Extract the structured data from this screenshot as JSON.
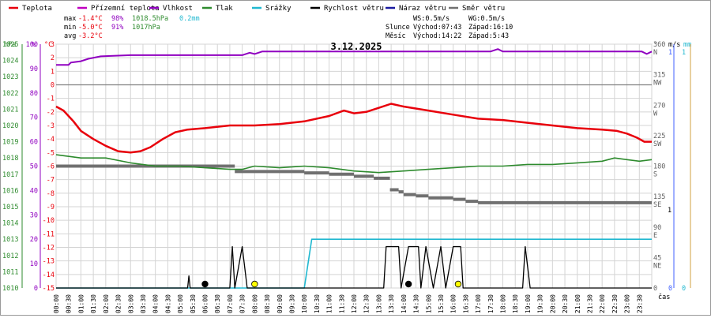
{
  "chart_data": {
    "type": "line",
    "title": "3.12.2025",
    "x": {
      "from": "00:00",
      "to": "24:00",
      "tick_step": "0:30",
      "label": "čas",
      "tick_labels": [
        "00:00",
        "00:30",
        "01:00",
        "01:30",
        "02:00",
        "02:30",
        "03:00",
        "03:30",
        "04:00",
        "04:30",
        "05:00",
        "05:30",
        "06:00",
        "06:30",
        "07:00",
        "07:30",
        "08:00",
        "08:30",
        "09:00",
        "09:30",
        "10:00",
        "10:30",
        "11:00",
        "11:30",
        "12:00",
        "12:30",
        "13:00",
        "13:30",
        "14:00",
        "14:30",
        "15:00",
        "15:30",
        "16:00",
        "16:30",
        "17:00",
        "17:30",
        "18:00",
        "18:30",
        "19:00",
        "19:30",
        "20:00",
        "20:30",
        "21:00",
        "21:30",
        "22:00",
        "22:30",
        "23:00",
        "23:30"
      ]
    },
    "legend": [
      {
        "name": "Teplota",
        "color": "#e8000b"
      },
      {
        "name": "Přízemní teplota",
        "color": "#c000c0"
      },
      {
        "name": "Vlhkost",
        "color": "#9000c0"
      },
      {
        "name": "Tlak",
        "color": "#2e8b2e"
      },
      {
        "name": "Srážky",
        "color": "#20b8d0"
      },
      {
        "name": "Rychlost větru",
        "color": "#000000"
      },
      {
        "name": "Náraz větru",
        "color": "#1a1aa0"
      },
      {
        "name": "Směr větru",
        "color": "#707070"
      }
    ],
    "stats": {
      "max": {
        "label": "max",
        "temp": "-1.4°C",
        "hum": "98%",
        "press": "1018.5hPa",
        "rain": "0.2mm"
      },
      "min": {
        "label": "min",
        "temp": "-5.0°C",
        "hum": "91%",
        "press": "1017hPa"
      },
      "avg": {
        "label": "avg",
        "temp": "-3.2°C"
      }
    },
    "info": {
      "ws": "WS:0.5m/s",
      "wg": "WG:0.5m/s",
      "sun": "Slunce",
      "sun_rise": "Východ:07:43",
      "sun_set": "Západ:16:10",
      "moon": "Měsíc",
      "moon_rise": "Východ:14:22",
      "moon_set": "Západ:5:43"
    },
    "axes": {
      "pressure": {
        "unit": "hPa",
        "range": [
          1010,
          1025
        ],
        "ticks": [
          "1025",
          "1024",
          "1023",
          "1022",
          "1021",
          "1020",
          "1019",
          "1018",
          "1017",
          "1016",
          "1015",
          "1014",
          "1013",
          "1012",
          "1011",
          "1010"
        ]
      },
      "humidity": {
        "unit": "%",
        "range": [
          0,
          100
        ],
        "ticks": [
          "100",
          "90",
          "80",
          "70",
          "60",
          "50",
          "40",
          "30",
          "20",
          "10",
          "0"
        ]
      },
      "temperature": {
        "unit": "°C",
        "range": [
          -15,
          3
        ],
        "ticks": [
          "3",
          "2",
          "1",
          "0",
          "-1",
          "-2",
          "-3",
          "-4",
          "-5",
          "-6",
          "-7",
          "-8",
          "-9",
          "-10",
          "-11",
          "-12",
          "-13",
          "-14",
          "-15"
        ]
      },
      "direction": {
        "unit": "°",
        "range": [
          0,
          360
        ],
        "ticks": [
          "360",
          "315",
          "270",
          "225",
          "180",
          "135",
          "90",
          "45",
          "0"
        ],
        "compass": [
          "N",
          "NW",
          "W",
          "SW",
          "S",
          "SE",
          "E",
          "NE"
        ]
      },
      "wind": {
        "unit": "m/s",
        "range": [
          0,
          1
        ],
        "ticks": [
          "1",
          "0"
        ]
      },
      "rain": {
        "unit": "mm",
        "range": [
          0,
          1
        ],
        "ticks": [
          "1",
          "0"
        ]
      }
    },
    "series": [
      {
        "name": "Teplota",
        "unit": "°C",
        "points": [
          [
            0,
            -1.6
          ],
          [
            0.3,
            -1.9
          ],
          [
            0.7,
            -2.7
          ],
          [
            1.0,
            -3.4
          ],
          [
            1.5,
            -4.0
          ],
          [
            2.0,
            -4.5
          ],
          [
            2.5,
            -4.9
          ],
          [
            3.0,
            -5.0
          ],
          [
            3.4,
            -4.9
          ],
          [
            3.8,
            -4.6
          ],
          [
            4.3,
            -4.0
          ],
          [
            4.8,
            -3.5
          ],
          [
            5.3,
            -3.3
          ],
          [
            6.0,
            -3.2
          ],
          [
            7.0,
            -3.0
          ],
          [
            8.0,
            -3.0
          ],
          [
            9.0,
            -2.9
          ],
          [
            10.0,
            -2.7
          ],
          [
            11.0,
            -2.3
          ],
          [
            11.6,
            -1.9
          ],
          [
            12.0,
            -2.1
          ],
          [
            12.5,
            -2.0
          ],
          [
            13.0,
            -1.7
          ],
          [
            13.5,
            -1.4
          ],
          [
            14.0,
            -1.6
          ],
          [
            15.0,
            -1.9
          ],
          [
            16.0,
            -2.2
          ],
          [
            17.0,
            -2.5
          ],
          [
            18.0,
            -2.6
          ],
          [
            19.0,
            -2.8
          ],
          [
            20.0,
            -3.0
          ],
          [
            21.0,
            -3.2
          ],
          [
            22.0,
            -3.3
          ],
          [
            22.6,
            -3.4
          ],
          [
            23.0,
            -3.6
          ],
          [
            23.4,
            -3.9
          ],
          [
            23.7,
            -4.2
          ],
          [
            24.0,
            -4.2
          ]
        ]
      },
      {
        "name": "Vlhkost",
        "unit": "%",
        "points": [
          [
            0,
            91.5
          ],
          [
            0.5,
            91.5
          ],
          [
            0.6,
            92.5
          ],
          [
            1.0,
            93
          ],
          [
            1.3,
            94
          ],
          [
            1.8,
            95
          ],
          [
            3.0,
            95.5
          ],
          [
            6.0,
            95.5
          ],
          [
            7.5,
            95.5
          ],
          [
            7.8,
            96.5
          ],
          [
            8.0,
            96
          ],
          [
            8.3,
            97
          ],
          [
            10.0,
            97
          ],
          [
            12.0,
            97
          ],
          [
            14.0,
            97
          ],
          [
            16.0,
            97
          ],
          [
            17.5,
            97
          ],
          [
            17.8,
            98
          ],
          [
            18.0,
            97
          ],
          [
            20.0,
            97
          ],
          [
            22.0,
            97
          ],
          [
            23.6,
            97
          ],
          [
            23.8,
            96
          ],
          [
            24.0,
            97
          ]
        ]
      },
      {
        "name": "Tlak",
        "unit": "hPa",
        "points": [
          [
            0,
            1018.2
          ],
          [
            1.0,
            1018.0
          ],
          [
            2.0,
            1018.0
          ],
          [
            3.0,
            1017.7
          ],
          [
            4.0,
            1017.5
          ],
          [
            5.0,
            1017.5
          ],
          [
            6.0,
            1017.4
          ],
          [
            7.0,
            1017.3
          ],
          [
            7.5,
            1017.3
          ],
          [
            8.0,
            1017.5
          ],
          [
            9.0,
            1017.4
          ],
          [
            10.0,
            1017.5
          ],
          [
            11.0,
            1017.4
          ],
          [
            12.0,
            1017.2
          ],
          [
            13.0,
            1017.1
          ],
          [
            14.0,
            1017.2
          ],
          [
            15.0,
            1017.3
          ],
          [
            16.0,
            1017.4
          ],
          [
            17.0,
            1017.5
          ],
          [
            18.0,
            1017.5
          ],
          [
            19.0,
            1017.6
          ],
          [
            20.0,
            1017.6
          ],
          [
            21.0,
            1017.7
          ],
          [
            22.0,
            1017.8
          ],
          [
            22.5,
            1018.0
          ],
          [
            23.0,
            1017.9
          ],
          [
            23.5,
            1017.8
          ],
          [
            24.0,
            1017.9
          ]
        ]
      },
      {
        "name": "Srážky",
        "unit": "mm",
        "points": [
          [
            0,
            0
          ],
          [
            10.0,
            0
          ],
          [
            10.3,
            0.2
          ],
          [
            24.0,
            0.2
          ]
        ]
      },
      {
        "name": "Rychlost větru",
        "unit": "m/s",
        "points": [
          [
            0,
            0
          ],
          [
            5.3,
            0
          ],
          [
            5.35,
            0.05
          ],
          [
            5.4,
            0
          ],
          [
            7.0,
            0
          ],
          [
            7.1,
            0.17
          ],
          [
            7.2,
            0
          ],
          [
            7.5,
            0.17
          ],
          [
            7.7,
            0
          ],
          [
            13.2,
            0
          ],
          [
            13.3,
            0.17
          ],
          [
            13.8,
            0.17
          ],
          [
            13.9,
            0
          ],
          [
            14.2,
            0.17
          ],
          [
            14.6,
            0.17
          ],
          [
            14.7,
            0
          ],
          [
            14.9,
            0.17
          ],
          [
            15.2,
            0
          ],
          [
            15.5,
            0.17
          ],
          [
            15.7,
            0
          ],
          [
            16.0,
            0.17
          ],
          [
            16.3,
            0.17
          ],
          [
            16.4,
            0
          ],
          [
            18.8,
            0
          ],
          [
            18.9,
            0.17
          ],
          [
            19.1,
            0
          ],
          [
            24.0,
            0
          ]
        ]
      },
      {
        "name": "Směr větru",
        "unit": "°",
        "points": [
          [
            0,
            180
          ],
          [
            7.0,
            180
          ],
          [
            7.2,
            172
          ],
          [
            9.0,
            172
          ],
          [
            10.0,
            170
          ],
          [
            11.0,
            168
          ],
          [
            12.0,
            165
          ],
          [
            12.8,
            162
          ],
          [
            13.4,
            162
          ],
          [
            13.45,
            145
          ],
          [
            13.8,
            142
          ],
          [
            14.0,
            138
          ],
          [
            14.5,
            136
          ],
          [
            15.0,
            133
          ],
          [
            16.0,
            131
          ],
          [
            16.5,
            128
          ],
          [
            17.0,
            126
          ],
          [
            24.0,
            126
          ]
        ]
      }
    ],
    "markers": [
      {
        "type": "dot",
        "color": "#000000",
        "time": 6.0
      },
      {
        "type": "dot",
        "color": "#ffff00",
        "time": 8.0
      },
      {
        "type": "dot",
        "color": "#000000",
        "time": 14.2
      },
      {
        "type": "dot",
        "color": "#ffff00",
        "time": 16.2
      }
    ]
  }
}
